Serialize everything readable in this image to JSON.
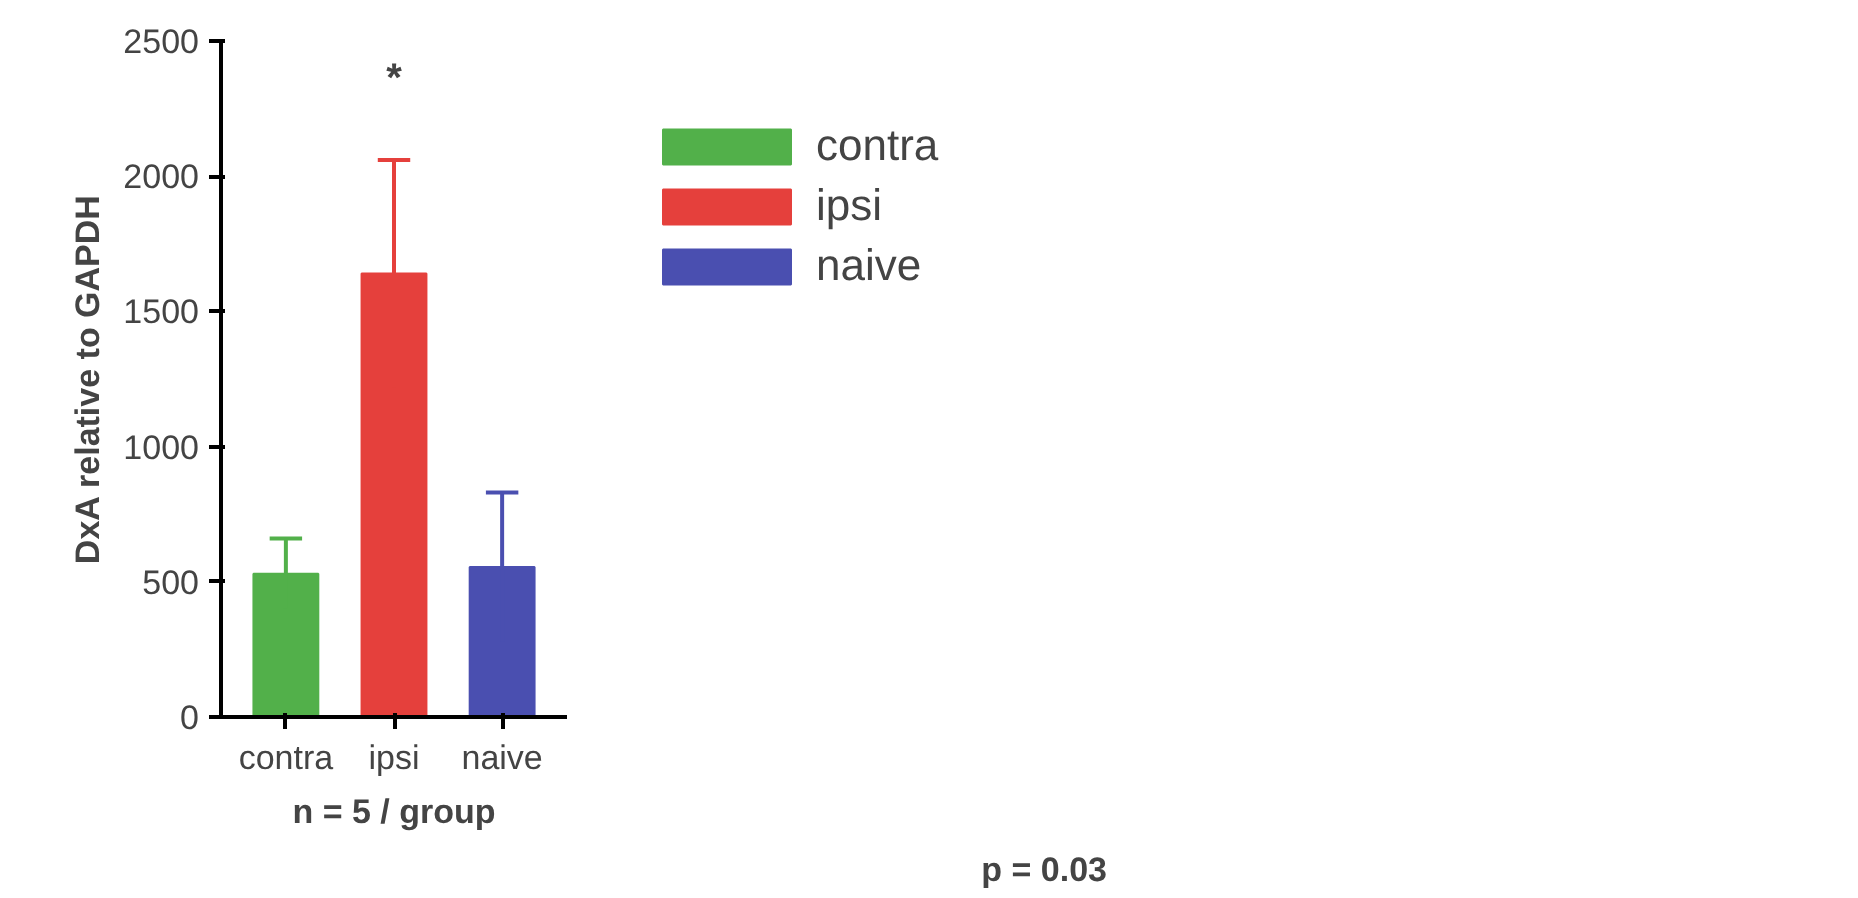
{
  "chart_data": {
    "type": "bar",
    "categories": [
      "contra",
      "ipsi",
      "naive"
    ],
    "series": [
      {
        "name": "contra",
        "color": "#52b04a",
        "values": [
          530,
          null,
          null
        ],
        "errors": [
          130,
          null,
          null
        ]
      },
      {
        "name": "ipsi",
        "color": "#e5403c",
        "values": [
          null,
          1640,
          null
        ],
        "errors": [
          null,
          420,
          null
        ]
      },
      {
        "name": "naive",
        "color": "#4a4fb0",
        "values": [
          null,
          null,
          555
        ],
        "errors": [
          null,
          null,
          275
        ]
      }
    ],
    "ylabel": "DxA relative to GAPDH",
    "xlabel": "n = 5 / group",
    "ylim": [
      0,
      2500
    ],
    "yticks": [
      0,
      500,
      1000,
      1500,
      2000,
      2500
    ],
    "grid": false,
    "legend": "top right",
    "annotations": [
      "*",
      "p = 0.03"
    ]
  }
}
